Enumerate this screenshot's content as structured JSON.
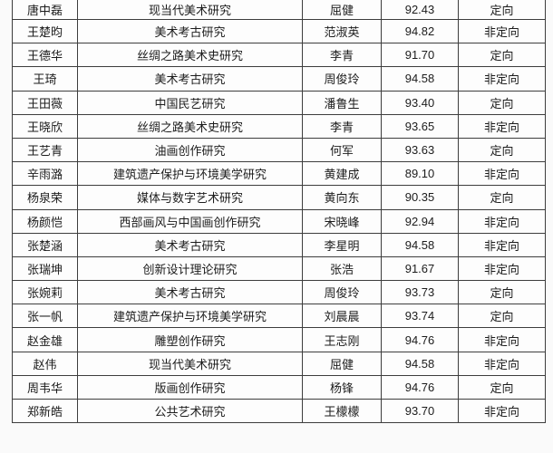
{
  "colors": {
    "border": "#3d3d3d",
    "text": "#1c1c1c",
    "cell_background": "#fdfdfd",
    "page_background": "#fafafa"
  },
  "table": {
    "column_keys": [
      "student-name",
      "research-direction",
      "advisor-name",
      "score",
      "enrollment-type"
    ],
    "rows": [
      [
        "唐中磊",
        "现当代美术研究",
        "屈健",
        "92.43",
        "定向"
      ],
      [
        "王楚昀",
        "美术考古研究",
        "范淑英",
        "94.82",
        "非定向"
      ],
      [
        "王德华",
        "丝绸之路美术史研究",
        "李青",
        "91.70",
        "定向"
      ],
      [
        "王琦",
        "美术考古研究",
        "周俊玲",
        "94.58",
        "非定向"
      ],
      [
        "王田薇",
        "中国民艺研究",
        "潘鲁生",
        "93.40",
        "定向"
      ],
      [
        "王晓欣",
        "丝绸之路美术史研究",
        "李青",
        "93.65",
        "非定向"
      ],
      [
        "王艺青",
        "油画创作研究",
        "何军",
        "93.63",
        "定向"
      ],
      [
        "辛雨潞",
        "建筑遗产保护与环境美学研究",
        "黄建成",
        "89.10",
        "非定向"
      ],
      [
        "杨泉荣",
        "媒体与数字艺术研究",
        "黄向东",
        "90.35",
        "定向"
      ],
      [
        "杨颜恺",
        "西部画风与中国画创作研究",
        "宋晓峰",
        "92.94",
        "非定向"
      ],
      [
        "张楚涵",
        "美术考古研究",
        "李星明",
        "94.58",
        "非定向"
      ],
      [
        "张瑞坤",
        "创新设计理论研究",
        "张浩",
        "91.67",
        "非定向"
      ],
      [
        "张婉莉",
        "美术考古研究",
        "周俊玲",
        "93.73",
        "定向"
      ],
      [
        "张一帆",
        "建筑遗产保护与环境美学研究",
        "刘晨晨",
        "93.74",
        "定向"
      ],
      [
        "赵金雄",
        "雕塑创作研究",
        "王志刚",
        "94.76",
        "非定向"
      ],
      [
        "赵伟",
        "现当代美术研究",
        "屈健",
        "94.58",
        "非定向"
      ],
      [
        "周韦华",
        "版画创作研究",
        "杨锋",
        "94.76",
        "定向"
      ],
      [
        "郑新皓",
        "公共艺术研究",
        "王檬檬",
        "93.70",
        "非定向"
      ]
    ]
  }
}
